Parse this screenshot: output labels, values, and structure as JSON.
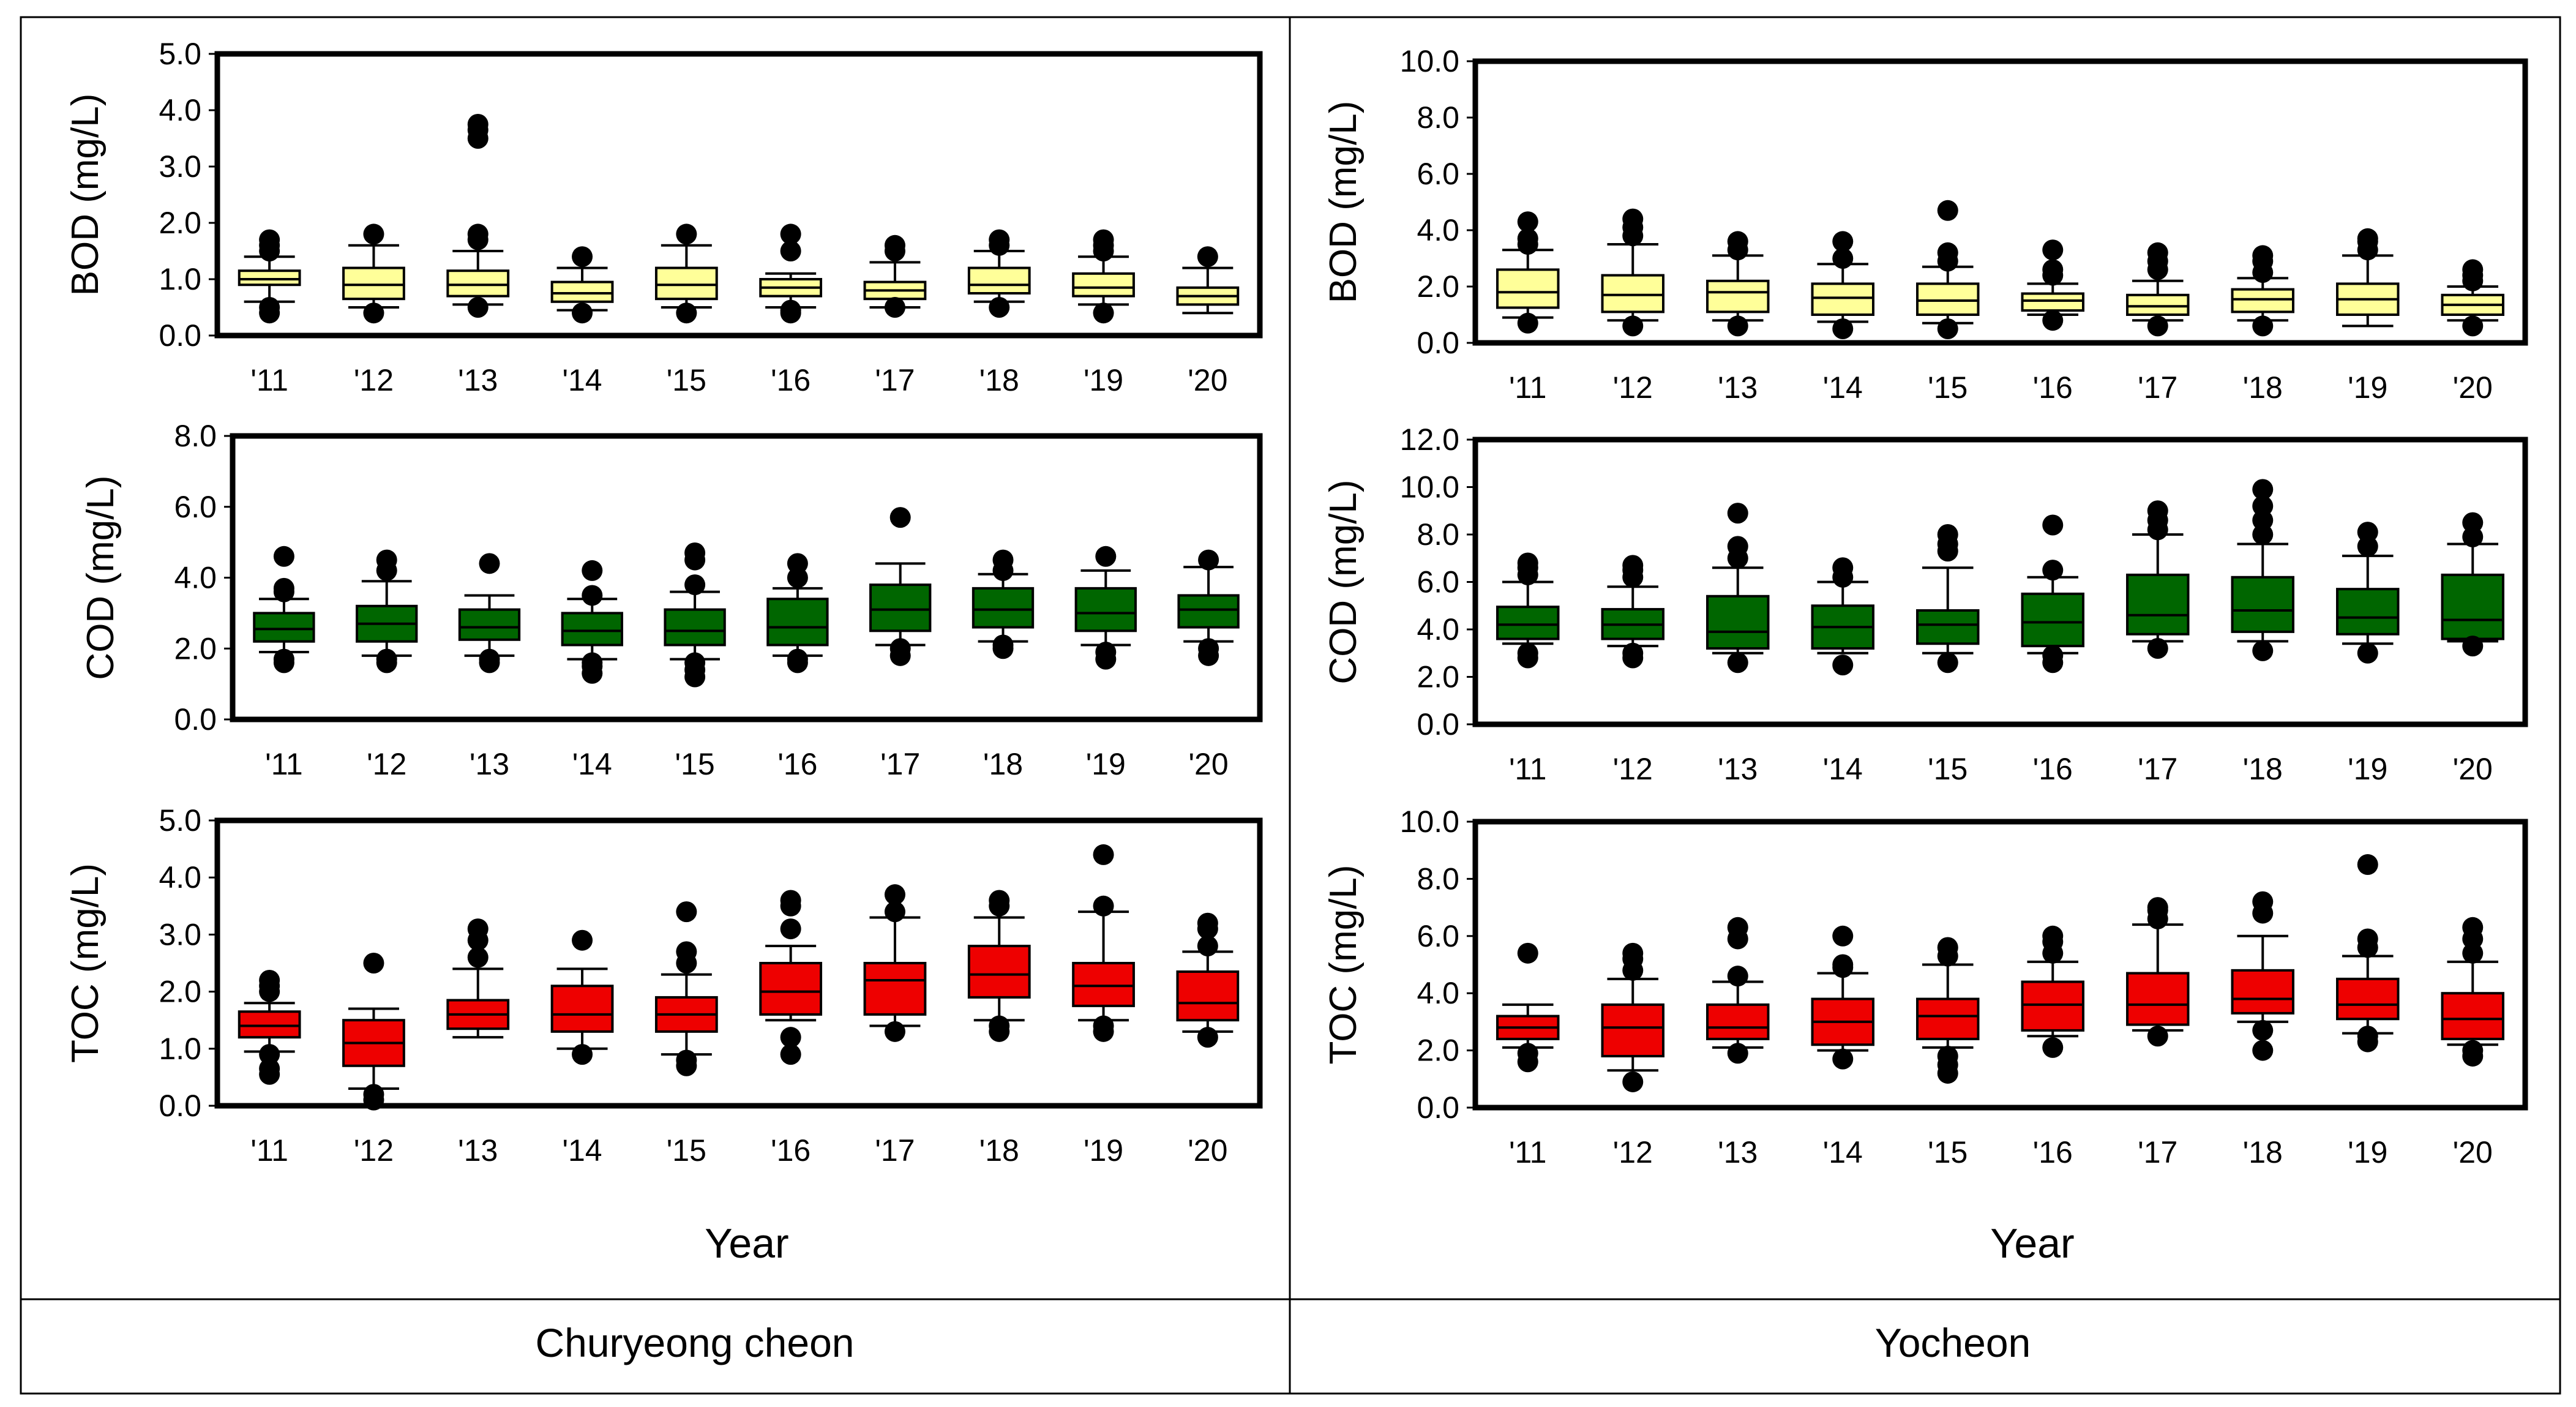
{
  "figure": {
    "panel_labels": [
      "Churyeong cheon",
      "Yocheon"
    ],
    "x_axis_title": "Year"
  },
  "colors": {
    "BOD": "#ffff99",
    "COD": "#006600",
    "TOC": "#ee0000",
    "frame": "#000000",
    "table_border": "#000000"
  },
  "chart_data": [
    {
      "type": "box",
      "site": "Churyeong cheon",
      "parameter": "BOD",
      "ylabel": "BOD (mg/L)",
      "xlabel": "",
      "categories": [
        "'11",
        "'12",
        "'13",
        "'14",
        "'15",
        "'16",
        "'17",
        "'18",
        "'19",
        "'20"
      ],
      "ylim": [
        0,
        5
      ],
      "yticks": [
        0.0,
        1.0,
        2.0,
        3.0,
        4.0,
        5.0
      ],
      "ytick_labels": [
        "0.0",
        "1.0",
        "2.0",
        "3.0",
        "4.0",
        "5.0"
      ],
      "boxes": [
        {
          "lw": 0.6,
          "q1": 0.9,
          "med": 1.0,
          "q3": 1.15,
          "uw": 1.4,
          "out": [
            0.4,
            0.5,
            1.5,
            1.6,
            1.7
          ]
        },
        {
          "lw": 0.5,
          "q1": 0.65,
          "med": 0.9,
          "q3": 1.2,
          "uw": 1.6,
          "out": [
            0.4,
            1.8
          ]
        },
        {
          "lw": 0.55,
          "q1": 0.7,
          "med": 0.9,
          "q3": 1.15,
          "uw": 1.5,
          "out": [
            0.5,
            1.7,
            1.8,
            3.5,
            3.65,
            3.75
          ]
        },
        {
          "lw": 0.45,
          "q1": 0.6,
          "med": 0.75,
          "q3": 0.95,
          "uw": 1.2,
          "out": [
            0.4,
            1.4
          ]
        },
        {
          "lw": 0.5,
          "q1": 0.65,
          "med": 0.9,
          "q3": 1.2,
          "uw": 1.6,
          "out": [
            0.4,
            1.8
          ]
        },
        {
          "lw": 0.5,
          "q1": 0.7,
          "med": 0.85,
          "q3": 1.0,
          "uw": 1.1,
          "out": [
            0.4,
            0.45,
            1.5,
            1.8
          ]
        },
        {
          "lw": 0.5,
          "q1": 0.65,
          "med": 0.8,
          "q3": 0.95,
          "uw": 1.3,
          "out": [
            0.5,
            1.5,
            1.6
          ]
        },
        {
          "lw": 0.6,
          "q1": 0.75,
          "med": 0.9,
          "q3": 1.2,
          "uw": 1.5,
          "out": [
            0.5,
            1.6,
            1.7
          ]
        },
        {
          "lw": 0.55,
          "q1": 0.7,
          "med": 0.85,
          "q3": 1.1,
          "uw": 1.4,
          "out": [
            0.4,
            1.5,
            1.6,
            1.7
          ]
        },
        {
          "lw": 0.4,
          "q1": 0.55,
          "med": 0.7,
          "q3": 0.85,
          "uw": 1.2,
          "out": [
            1.4
          ]
        }
      ]
    },
    {
      "type": "box",
      "site": "Churyeong cheon",
      "parameter": "COD",
      "ylabel": "COD (mg/L)",
      "xlabel": "",
      "categories": [
        "'11",
        "'12",
        "'13",
        "'14",
        "'15",
        "'16",
        "'17",
        "'18",
        "'19",
        "'20"
      ],
      "ylim": [
        0,
        8
      ],
      "yticks": [
        0.0,
        2.0,
        4.0,
        6.0,
        8.0
      ],
      "ytick_labels": [
        "0.0",
        "2.0",
        "4.0",
        "6.0",
        "8.0"
      ],
      "boxes": [
        {
          "lw": 1.9,
          "q1": 2.2,
          "med": 2.55,
          "q3": 3.0,
          "uw": 3.4,
          "out": [
            1.6,
            1.7,
            3.6,
            3.7,
            4.6
          ]
        },
        {
          "lw": 1.8,
          "q1": 2.2,
          "med": 2.7,
          "q3": 3.2,
          "uw": 3.9,
          "out": [
            1.6,
            1.7,
            4.2,
            4.5
          ]
        },
        {
          "lw": 1.8,
          "q1": 2.25,
          "med": 2.6,
          "q3": 3.1,
          "uw": 3.5,
          "out": [
            1.6,
            1.7,
            4.4
          ]
        },
        {
          "lw": 1.7,
          "q1": 2.1,
          "med": 2.5,
          "q3": 3.0,
          "uw": 3.4,
          "out": [
            1.3,
            1.5,
            1.6,
            3.5,
            4.2
          ]
        },
        {
          "lw": 1.7,
          "q1": 2.1,
          "med": 2.5,
          "q3": 3.1,
          "uw": 3.6,
          "out": [
            1.2,
            1.4,
            1.6,
            3.8,
            4.5,
            4.7
          ]
        },
        {
          "lw": 1.8,
          "q1": 2.1,
          "med": 2.6,
          "q3": 3.4,
          "uw": 3.7,
          "out": [
            1.6,
            1.7,
            4.0,
            4.4
          ]
        },
        {
          "lw": 2.1,
          "q1": 2.5,
          "med": 3.1,
          "q3": 3.8,
          "uw": 4.4,
          "out": [
            1.8,
            2.0,
            5.7
          ]
        },
        {
          "lw": 2.2,
          "q1": 2.6,
          "med": 3.1,
          "q3": 3.7,
          "uw": 4.1,
          "out": [
            2.0,
            2.1,
            4.2,
            4.5
          ]
        },
        {
          "lw": 2.1,
          "q1": 2.5,
          "med": 3.0,
          "q3": 3.7,
          "uw": 4.2,
          "out": [
            1.7,
            1.9,
            4.6
          ]
        },
        {
          "lw": 2.2,
          "q1": 2.6,
          "med": 3.1,
          "q3": 3.5,
          "uw": 4.3,
          "out": [
            1.8,
            2.0,
            4.5
          ]
        }
      ]
    },
    {
      "type": "box",
      "site": "Churyeong cheon",
      "parameter": "TOC",
      "ylabel": "TOC (mg/L)",
      "xlabel": "Year",
      "categories": [
        "'11",
        "'12",
        "'13",
        "'14",
        "'15",
        "'16",
        "'17",
        "'18",
        "'19",
        "'20"
      ],
      "ylim": [
        0,
        5
      ],
      "yticks": [
        0.0,
        1.0,
        2.0,
        3.0,
        4.0,
        5.0
      ],
      "ytick_labels": [
        "0.0",
        "1.0",
        "2.0",
        "3.0",
        "4.0",
        "5.0"
      ],
      "boxes": [
        {
          "lw": 0.95,
          "q1": 1.2,
          "med": 1.4,
          "q3": 1.65,
          "uw": 1.8,
          "out": [
            0.55,
            0.65,
            0.9,
            2.0,
            2.1,
            2.2
          ]
        },
        {
          "lw": 0.3,
          "q1": 0.7,
          "med": 1.1,
          "q3": 1.5,
          "uw": 1.7,
          "out": [
            0.1,
            0.2,
            2.5
          ]
        },
        {
          "lw": 1.2,
          "q1": 1.35,
          "med": 1.6,
          "q3": 1.85,
          "uw": 2.4,
          "out": [
            2.6,
            2.9,
            3.1
          ]
        },
        {
          "lw": 1.0,
          "q1": 1.3,
          "med": 1.6,
          "q3": 2.1,
          "uw": 2.4,
          "out": [
            0.9,
            2.9
          ]
        },
        {
          "lw": 0.9,
          "q1": 1.3,
          "med": 1.6,
          "q3": 1.9,
          "uw": 2.3,
          "out": [
            0.7,
            0.8,
            2.5,
            2.7,
            3.4
          ]
        },
        {
          "lw": 1.5,
          "q1": 1.6,
          "med": 2.0,
          "q3": 2.5,
          "uw": 2.8,
          "out": [
            0.9,
            1.2,
            3.1,
            3.5,
            3.6
          ]
        },
        {
          "lw": 1.4,
          "q1": 1.6,
          "med": 2.2,
          "q3": 2.5,
          "uw": 3.3,
          "out": [
            1.3,
            3.4,
            3.7
          ]
        },
        {
          "lw": 1.5,
          "q1": 1.9,
          "med": 2.3,
          "q3": 2.8,
          "uw": 3.3,
          "out": [
            1.3,
            1.4,
            3.5,
            3.6
          ]
        },
        {
          "lw": 1.5,
          "q1": 1.75,
          "med": 2.1,
          "q3": 2.5,
          "uw": 3.4,
          "out": [
            1.3,
            1.4,
            3.5,
            4.4
          ]
        },
        {
          "lw": 1.3,
          "q1": 1.5,
          "med": 1.8,
          "q3": 2.35,
          "uw": 2.7,
          "out": [
            1.2,
            2.8,
            3.1,
            3.2
          ]
        }
      ]
    },
    {
      "type": "box",
      "site": "Yocheon",
      "parameter": "BOD",
      "ylabel": "BOD (mg/L)",
      "xlabel": "",
      "categories": [
        "'11",
        "'12",
        "'13",
        "'14",
        "'15",
        "'16",
        "'17",
        "'18",
        "'19",
        "'20"
      ],
      "ylim": [
        0,
        10
      ],
      "yticks": [
        0.0,
        2.0,
        4.0,
        6.0,
        8.0,
        10.0
      ],
      "ytick_labels": [
        "0.0",
        "2.0",
        "4.0",
        "6.0",
        "8.0",
        "10.0"
      ],
      "boxes": [
        {
          "lw": 0.9,
          "q1": 1.25,
          "med": 1.8,
          "q3": 2.6,
          "uw": 3.3,
          "out": [
            0.7,
            3.5,
            3.7,
            4.3
          ]
        },
        {
          "lw": 0.8,
          "q1": 1.1,
          "med": 1.7,
          "q3": 2.4,
          "uw": 3.5,
          "out": [
            0.6,
            3.8,
            4.1,
            4.4
          ]
        },
        {
          "lw": 0.8,
          "q1": 1.1,
          "med": 1.8,
          "q3": 2.2,
          "uw": 3.1,
          "out": [
            0.6,
            3.3,
            3.6
          ]
        },
        {
          "lw": 0.75,
          "q1": 1.0,
          "med": 1.6,
          "q3": 2.1,
          "uw": 2.8,
          "out": [
            0.5,
            3.0,
            3.6
          ]
        },
        {
          "lw": 0.7,
          "q1": 1.0,
          "med": 1.5,
          "q3": 2.1,
          "uw": 2.7,
          "out": [
            0.5,
            2.9,
            3.2,
            4.7
          ]
        },
        {
          "lw": 1.0,
          "q1": 1.15,
          "med": 1.5,
          "q3": 1.75,
          "uw": 2.1,
          "out": [
            0.8,
            2.4,
            2.6,
            3.3
          ]
        },
        {
          "lw": 0.8,
          "q1": 1.0,
          "med": 1.3,
          "q3": 1.7,
          "uw": 2.2,
          "out": [
            0.6,
            2.6,
            2.9,
            3.2
          ]
        },
        {
          "lw": 0.8,
          "q1": 1.1,
          "med": 1.55,
          "q3": 1.9,
          "uw": 2.3,
          "out": [
            0.6,
            2.5,
            2.9,
            3.1
          ]
        },
        {
          "lw": 0.6,
          "q1": 1.0,
          "med": 1.55,
          "q3": 2.1,
          "uw": 3.1,
          "out": [
            3.3,
            3.6,
            3.7
          ]
        },
        {
          "lw": 0.8,
          "q1": 1.0,
          "med": 1.35,
          "q3": 1.7,
          "uw": 2.0,
          "out": [
            0.6,
            2.2,
            2.4,
            2.6
          ]
        }
      ]
    },
    {
      "type": "box",
      "site": "Yocheon",
      "parameter": "COD",
      "ylabel": "COD (mg/L)",
      "xlabel": "",
      "categories": [
        "'11",
        "'12",
        "'13",
        "'14",
        "'15",
        "'16",
        "'17",
        "'18",
        "'19",
        "'20"
      ],
      "ylim": [
        0,
        12
      ],
      "yticks": [
        0.0,
        2.0,
        4.0,
        6.0,
        8.0,
        10.0,
        12.0
      ],
      "ytick_labels": [
        "0.0",
        "2.0",
        "4.0",
        "6.0",
        "8.0",
        "10.0",
        "12.0"
      ],
      "boxes": [
        {
          "lw": 3.4,
          "q1": 3.6,
          "med": 4.2,
          "q3": 4.95,
          "uw": 6.0,
          "out": [
            2.8,
            3.0,
            6.3,
            6.6,
            6.8
          ]
        },
        {
          "lw": 3.3,
          "q1": 3.6,
          "med": 4.2,
          "q3": 4.85,
          "uw": 5.8,
          "out": [
            2.8,
            3.0,
            6.2,
            6.5,
            6.7
          ]
        },
        {
          "lw": 3.0,
          "q1": 3.2,
          "med": 3.9,
          "q3": 5.4,
          "uw": 6.6,
          "out": [
            2.6,
            7.0,
            7.5,
            8.9
          ]
        },
        {
          "lw": 3.0,
          "q1": 3.2,
          "med": 4.1,
          "q3": 5.0,
          "uw": 6.0,
          "out": [
            2.5,
            6.2,
            6.6
          ]
        },
        {
          "lw": 3.0,
          "q1": 3.4,
          "med": 4.2,
          "q3": 4.8,
          "uw": 6.6,
          "out": [
            2.6,
            7.3,
            7.6,
            8.0
          ]
        },
        {
          "lw": 3.0,
          "q1": 3.3,
          "med": 4.3,
          "q3": 5.5,
          "uw": 6.2,
          "out": [
            2.6,
            2.9,
            6.5,
            8.4
          ]
        },
        {
          "lw": 3.5,
          "q1": 3.8,
          "med": 4.6,
          "q3": 6.3,
          "uw": 8.0,
          "out": [
            3.2,
            8.2,
            8.6,
            9.0
          ]
        },
        {
          "lw": 3.5,
          "q1": 3.9,
          "med": 4.8,
          "q3": 6.2,
          "uw": 7.6,
          "out": [
            3.1,
            8.0,
            8.6,
            9.2,
            9.9
          ]
        },
        {
          "lw": 3.4,
          "q1": 3.8,
          "med": 4.5,
          "q3": 5.7,
          "uw": 7.1,
          "out": [
            3.0,
            7.5,
            8.1
          ]
        },
        {
          "lw": 3.5,
          "q1": 3.6,
          "med": 4.4,
          "q3": 6.3,
          "uw": 7.6,
          "out": [
            3.3,
            7.9,
            8.5
          ]
        }
      ]
    },
    {
      "type": "box",
      "site": "Yocheon",
      "parameter": "TOC",
      "ylabel": "TOC (mg/L)",
      "xlabel": "Year",
      "categories": [
        "'11",
        "'12",
        "'13",
        "'14",
        "'15",
        "'16",
        "'17",
        "'18",
        "'19",
        "'20"
      ],
      "ylim": [
        0,
        10
      ],
      "yticks": [
        0.0,
        2.0,
        4.0,
        6.0,
        8.0,
        10.0
      ],
      "ytick_labels": [
        "0.0",
        "2.0",
        "4.0",
        "6.0",
        "8.0",
        "10.0"
      ],
      "boxes": [
        {
          "lw": 2.1,
          "q1": 2.4,
          "med": 2.8,
          "q3": 3.2,
          "uw": 3.6,
          "out": [
            1.6,
            1.9,
            5.4
          ]
        },
        {
          "lw": 1.3,
          "q1": 1.8,
          "med": 2.8,
          "q3": 3.6,
          "uw": 4.5,
          "out": [
            0.9,
            4.8,
            5.2,
            5.4
          ]
        },
        {
          "lw": 2.1,
          "q1": 2.4,
          "med": 2.8,
          "q3": 3.6,
          "uw": 4.4,
          "out": [
            1.9,
            4.6,
            5.9,
            6.3
          ]
        },
        {
          "lw": 2.0,
          "q1": 2.2,
          "med": 3.0,
          "q3": 3.8,
          "uw": 4.7,
          "out": [
            1.7,
            4.9,
            5.0,
            6.0
          ]
        },
        {
          "lw": 2.1,
          "q1": 2.4,
          "med": 3.2,
          "q3": 3.8,
          "uw": 5.0,
          "out": [
            1.2,
            1.5,
            1.8,
            5.3,
            5.6
          ]
        },
        {
          "lw": 2.5,
          "q1": 2.7,
          "med": 3.6,
          "q3": 4.4,
          "uw": 5.1,
          "out": [
            2.1,
            5.4,
            5.8,
            6.0
          ]
        },
        {
          "lw": 2.7,
          "q1": 2.9,
          "med": 3.6,
          "q3": 4.7,
          "uw": 6.4,
          "out": [
            2.5,
            6.6,
            6.9,
            7.0
          ]
        },
        {
          "lw": 3.0,
          "q1": 3.3,
          "med": 3.8,
          "q3": 4.8,
          "uw": 6.0,
          "out": [
            2.0,
            2.7,
            6.8,
            7.2
          ]
        },
        {
          "lw": 2.6,
          "q1": 3.1,
          "med": 3.6,
          "q3": 4.5,
          "uw": 5.3,
          "out": [
            2.3,
            2.5,
            5.6,
            5.9,
            8.5
          ]
        },
        {
          "lw": 2.2,
          "q1": 2.4,
          "med": 3.1,
          "q3": 4.0,
          "uw": 5.1,
          "out": [
            1.8,
            2.0,
            5.4,
            5.9,
            6.3
          ]
        }
      ]
    }
  ]
}
